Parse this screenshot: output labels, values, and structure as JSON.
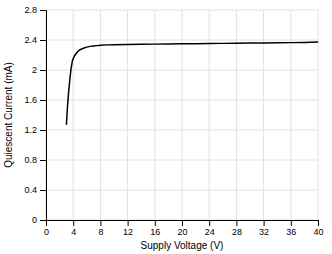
{
  "chart_data": {
    "type": "line",
    "xlabel": "Supply Voltage (V)",
    "ylabel": "Quiescent Current (mA)",
    "x": [
      3.0,
      3.15,
      3.3,
      3.5,
      3.7,
      3.9,
      4.2,
      4.6,
      5.0,
      5.5,
      6.0,
      6.5,
      7.0,
      7.5,
      8.0,
      9.0,
      10.0,
      12.0,
      14.0,
      16.0,
      18.0,
      20.0,
      22.0,
      24.0,
      26.0,
      28.0,
      30.0,
      32.0,
      34.0,
      36.0,
      38.0,
      40.0
    ],
    "values": [
      1.27,
      1.5,
      1.68,
      1.87,
      2.03,
      2.13,
      2.19,
      2.24,
      2.27,
      2.29,
      2.305,
      2.315,
      2.32,
      2.325,
      2.33,
      2.335,
      2.337,
      2.34,
      2.342,
      2.345,
      2.347,
      2.349,
      2.351,
      2.353,
      2.355,
      2.357,
      2.359,
      2.361,
      2.363,
      2.365,
      2.368,
      2.372
    ],
    "color": "#000000",
    "xlim": [
      0,
      40
    ],
    "ylim": [
      0,
      2.8
    ],
    "xticks": [
      0,
      4,
      8,
      12,
      16,
      20,
      24,
      28,
      32,
      36,
      40
    ],
    "yticks": [
      0,
      0.4,
      0.8,
      1.2,
      1.6,
      2,
      2.4,
      2.8
    ],
    "grid": true
  }
}
